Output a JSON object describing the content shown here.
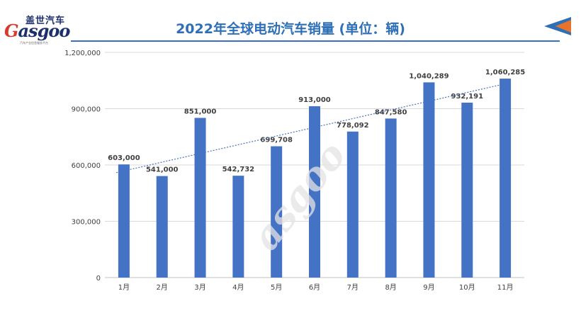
{
  "header": {
    "title": "2022年全球电动汽车销量 (单位：辆)",
    "logo_cn": "盖世汽车",
    "logo_en_g": "G",
    "logo_en_rest": "asgoo",
    "logo_sub": "汽车产业信息服务平台"
  },
  "colors": {
    "bar": "#4472c4",
    "title": "#2e6fb6",
    "trend": "#4472c4",
    "grid": "#d9d9d9"
  },
  "chart_data": {
    "type": "bar",
    "categories": [
      "1月",
      "2月",
      "3月",
      "4月",
      "5月",
      "6月",
      "7月",
      "8月",
      "9月",
      "10月",
      "11月"
    ],
    "values": [
      603000,
      541000,
      851000,
      542732,
      699708,
      913000,
      778092,
      847580,
      1040289,
      932191,
      1060285
    ],
    "value_labels": [
      "603,000",
      "541,000",
      "851,000",
      "542,732",
      "699,708",
      "913,000",
      "778,092",
      "847,580",
      "1,040,289",
      "932,191",
      "1,060,285"
    ],
    "y_ticks": [
      0,
      300000,
      600000,
      900000,
      1200000
    ],
    "y_tick_labels": [
      "0",
      "300,000",
      "600,000",
      "900,000",
      "1,200,000"
    ],
    "ylim": [
      0,
      1200000
    ],
    "grid": true,
    "trendline": "linear",
    "title": "2022年全球电动汽车销量 (单位：辆)",
    "xlabel": "",
    "ylabel": ""
  }
}
